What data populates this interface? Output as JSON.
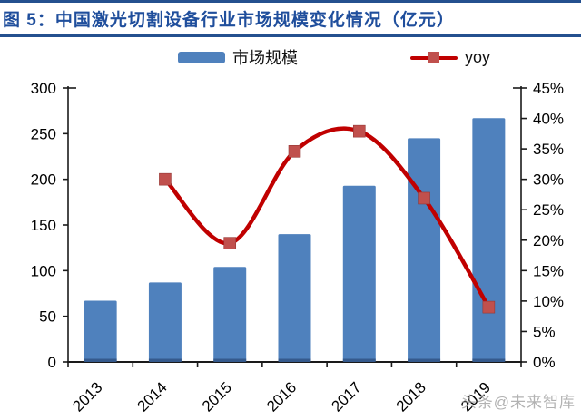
{
  "header": {
    "title": "图 5：中国激光切割设备行业市场规模变化情况（亿元）"
  },
  "legend": {
    "items": [
      {
        "label": "市场规模",
        "swatch": "bar"
      },
      {
        "label": "yoy",
        "swatch": "line-with-square-marker"
      }
    ]
  },
  "watermark": {
    "text": "头条@未来智库"
  },
  "colors": {
    "title_blue": "#1F4E9C",
    "rule_blue": "#24508F",
    "bar_fill": "#4F81BD",
    "bar_base_shade": "#2B4A79",
    "line_red": "#C00000",
    "marker_red": "#C0504D",
    "axis": "#1A1A1A",
    "tick_label": "#000000",
    "watermark_gray": "#A0A0A0"
  },
  "chart_data": {
    "type": "bar",
    "subtype": "combo-bar-line",
    "title": "中国激光切割设备行业市场规模变化情况（亿元）",
    "categories": [
      "2013",
      "2014",
      "2015",
      "2016",
      "2017",
      "2018",
      "2019"
    ],
    "series": [
      {
        "name": "市场规模",
        "type": "bar",
        "axis": "left",
        "unit": "亿元",
        "values": [
          67,
          87,
          104,
          140,
          193,
          245,
          267
        ]
      },
      {
        "name": "yoy",
        "type": "line",
        "axis": "right",
        "unit": "%",
        "values": [
          null,
          30.0,
          19.5,
          34.6,
          37.9,
          26.9,
          9.0
        ]
      }
    ],
    "left_axis": {
      "min": 0,
      "max": 300,
      "step": 50,
      "tick_labels": [
        "0",
        "50",
        "100",
        "150",
        "200",
        "250",
        "300"
      ]
    },
    "right_axis": {
      "min": 0,
      "max": 45,
      "step": 5,
      "unit": "%",
      "tick_labels": [
        "0%",
        "5%",
        "10%",
        "15%",
        "20%",
        "25%",
        "30%",
        "35%",
        "40%",
        "45%"
      ]
    },
    "grid": false,
    "legend_position": "top",
    "x_tick_rotation": -45
  }
}
